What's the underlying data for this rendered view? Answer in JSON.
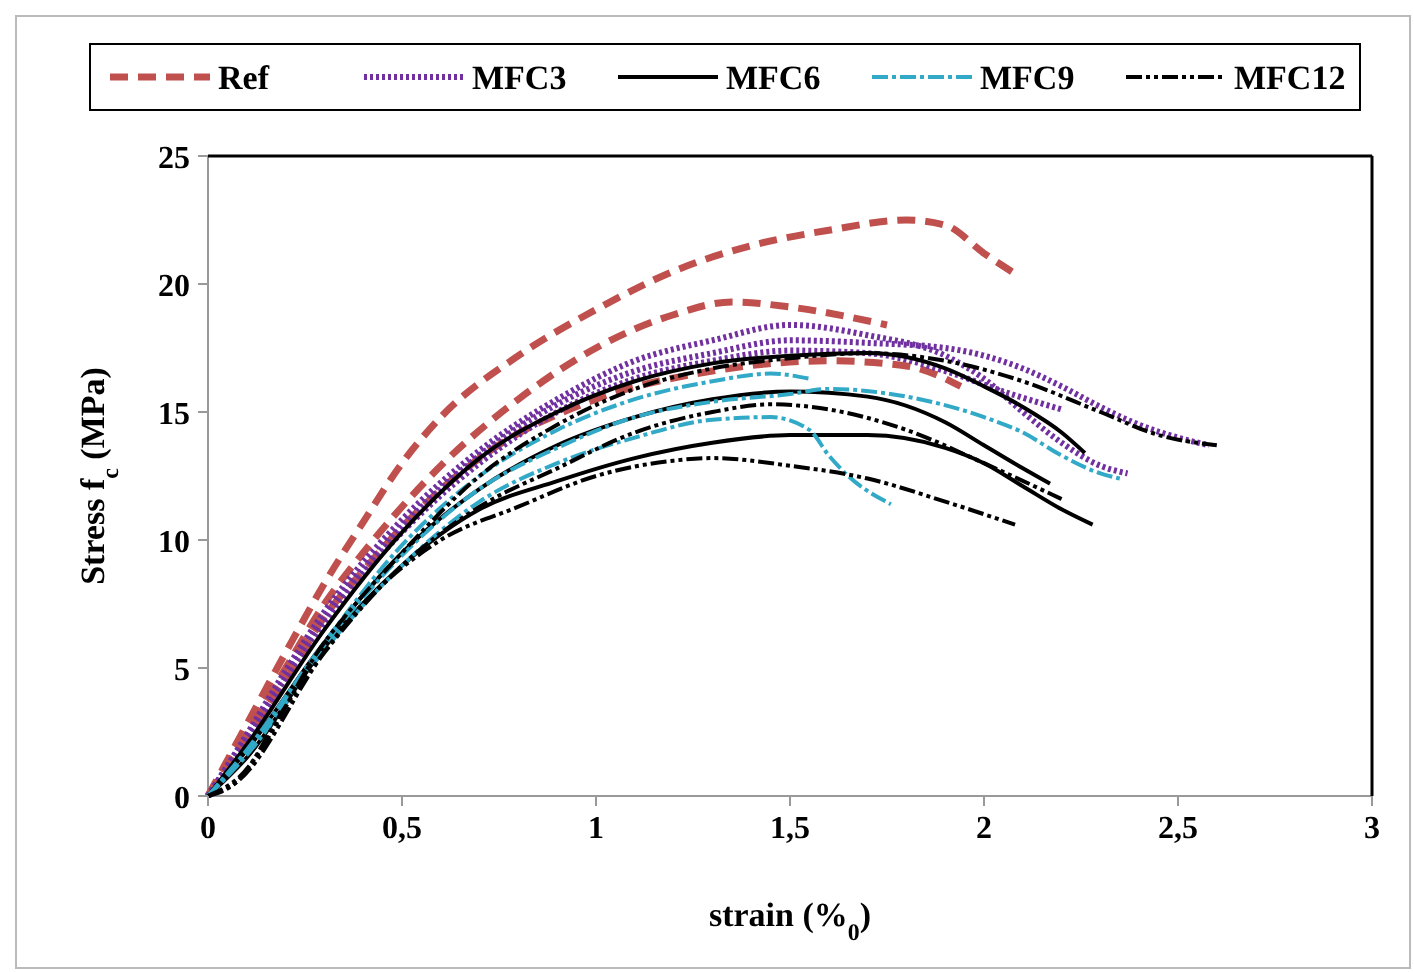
{
  "chart_data": {
    "type": "line",
    "xlabel": "strain (%$_{0}$)",
    "ylabel": "Stress f$_{c}$ (MPa)",
    "xlim": [
      0,
      3
    ],
    "ylim": [
      0,
      25
    ],
    "xticks": [
      0,
      {
        "value": 0.5,
        "label": "0,5"
      },
      1,
      {
        "value": 1.5,
        "label": "1,5"
      },
      2,
      {
        "value": 2.5,
        "label": "2,5"
      },
      3
    ],
    "yticks": [
      0,
      5,
      10,
      15,
      20,
      25
    ],
    "grid": false,
    "legend": "top",
    "marker": "none",
    "series": [
      {
        "name": "Ref",
        "color": "#c0504d",
        "line_style": "dashed",
        "x": [
          0,
          0.1,
          0.2,
          0.3,
          0.4,
          0.5,
          0.6,
          0.8,
          1.0,
          1.2,
          1.4,
          1.6,
          1.8,
          1.9,
          2.0,
          2.08
        ],
        "values": [
          0,
          2.8,
          5.6,
          8.3,
          10.7,
          13,
          14.8,
          17.2,
          19,
          20.5,
          21.5,
          22.1,
          22.5,
          22.3,
          21.2,
          20.4
        ]
      },
      {
        "color": "#c0504d",
        "line_style": "dashed",
        "x": [
          0,
          0.1,
          0.2,
          0.3,
          0.4,
          0.5,
          0.6,
          0.8,
          1.0,
          1.2,
          1.35,
          1.5,
          1.75
        ],
        "values": [
          0,
          2.5,
          5,
          7.5,
          9.5,
          11.3,
          12.9,
          15.5,
          17.5,
          18.8,
          19.3,
          19.1,
          18.4
        ]
      },
      {
        "color": "#c0504d",
        "line_style": "dashed",
        "x": [
          0,
          0.1,
          0.2,
          0.3,
          0.4,
          0.5,
          0.7,
          1.0,
          1.3,
          1.6,
          1.8,
          1.94
        ],
        "values": [
          0,
          2.3,
          4.5,
          7,
          8.8,
          10.5,
          13.2,
          15.5,
          16.6,
          17,
          16.8,
          16.0
        ]
      },
      {
        "name": "MFC3",
        "color": "#7030a0",
        "line_style": "dotted",
        "x": [
          0,
          0.1,
          0.2,
          0.3,
          0.5,
          0.7,
          0.9,
          1.1,
          1.3,
          1.5,
          1.7,
          1.9,
          2.0,
          2.1,
          2.2,
          2.3,
          2.37
        ],
        "values": [
          0,
          2.4,
          4.9,
          7.2,
          10.8,
          13.5,
          15.5,
          17,
          17.8,
          18.4,
          18,
          17.2,
          16.3,
          15,
          13.8,
          12.9,
          12.6
        ]
      },
      {
        "color": "#7030a0",
        "line_style": "dotted",
        "x": [
          0,
          0.1,
          0.3,
          0.5,
          0.7,
          0.9,
          1.1,
          1.3,
          1.5,
          1.7,
          1.9,
          2.0,
          2.1,
          2.2,
          2.3,
          2.4,
          2.5,
          2.58
        ],
        "values": [
          0,
          2.2,
          7,
          10.5,
          13.3,
          15.3,
          16.6,
          17.3,
          17.8,
          17.7,
          17.5,
          17.2,
          16.7,
          16,
          15.2,
          14.5,
          14,
          13.7
        ]
      },
      {
        "color": "#7030a0",
        "line_style": "dotted",
        "x": [
          0,
          0.1,
          0.3,
          0.5,
          0.7,
          0.9,
          1.1,
          1.3,
          1.5,
          1.7,
          1.9,
          2.05,
          2.2
        ],
        "values": [
          0,
          2.3,
          6.8,
          10.3,
          13,
          15,
          16.3,
          17,
          17.4,
          17.3,
          16.6,
          15.8,
          15.1
        ]
      },
      {
        "name": "MFC6",
        "color": "#000000",
        "line_style": "solid",
        "x": [
          0,
          0.1,
          0.3,
          0.5,
          0.7,
          0.9,
          1.1,
          1.3,
          1.5,
          1.7,
          1.9,
          2.0,
          2.1,
          2.2,
          2.28
        ],
        "values": [
          0,
          1.5,
          5.8,
          9,
          11.2,
          12.3,
          13.2,
          13.8,
          14.1,
          14.1,
          13.6,
          13,
          12.1,
          11.2,
          10.6
        ]
      },
      {
        "color": "#000000",
        "line_style": "solid",
        "x": [
          0,
          0.1,
          0.3,
          0.5,
          0.7,
          0.9,
          1.1,
          1.3,
          1.5,
          1.7,
          1.9,
          2.0,
          2.1,
          2.2,
          2.26
        ],
        "values": [
          0,
          2,
          6.5,
          10.3,
          13.2,
          15,
          16.2,
          16.9,
          17.2,
          17.3,
          16.7,
          16,
          15.2,
          14.2,
          13.4
        ]
      },
      {
        "color": "#000000",
        "line_style": "solid",
        "x": [
          0,
          0.1,
          0.3,
          0.5,
          0.7,
          0.9,
          1.1,
          1.3,
          1.5,
          1.7,
          1.9,
          2.0,
          2.1,
          2.17
        ],
        "values": [
          0,
          1.8,
          6,
          9.5,
          12,
          13.7,
          14.8,
          15.5,
          15.8,
          15.6,
          14.6,
          13.7,
          12.8,
          12.2
        ]
      },
      {
        "name": "MFC9",
        "color": "#31a9c7",
        "line_style": "dashdot",
        "x": [
          0,
          0.1,
          0.3,
          0.5,
          0.7,
          0.9,
          1.1,
          1.3,
          1.45,
          1.55
        ],
        "values": [
          0,
          1.8,
          6,
          9.8,
          12.5,
          14.3,
          15.5,
          16.2,
          16.5,
          16.3
        ]
      },
      {
        "color": "#31a9c7",
        "line_style": "dashdot",
        "x": [
          0,
          0.1,
          0.3,
          0.5,
          0.7,
          0.9,
          1.1,
          1.3,
          1.45,
          1.55,
          1.6,
          1.65,
          1.76
        ],
        "values": [
          0,
          1.6,
          5.7,
          9,
          11.5,
          13,
          14,
          14.7,
          14.8,
          14.3,
          13.3,
          12.5,
          11.4
        ]
      },
      {
        "color": "#31a9c7",
        "line_style": "dashdot",
        "x": [
          0,
          0.1,
          0.3,
          0.5,
          0.7,
          0.9,
          1.1,
          1.3,
          1.5,
          1.6,
          1.8,
          2.0,
          2.1,
          2.2,
          2.3,
          2.35
        ],
        "values": [
          0,
          1.7,
          5.9,
          9.4,
          12,
          13.6,
          14.8,
          15.4,
          15.7,
          15.9,
          15.6,
          14.8,
          14.2,
          13.3,
          12.6,
          12.4
        ]
      },
      {
        "name": "MFC12",
        "color": "#000000",
        "line_style": "dashdotdot",
        "x": [
          0,
          0.07,
          0.2,
          0.4,
          0.6,
          0.8,
          1.0,
          1.2,
          1.3,
          1.5,
          1.7,
          1.9,
          2.08
        ],
        "values": [
          0,
          0.5,
          3.5,
          7.5,
          10,
          11.3,
          12.5,
          13.1,
          13.2,
          12.9,
          12.4,
          11.5,
          10.6
        ]
      },
      {
        "color": "#000000",
        "line_style": "dashdotdot",
        "x": [
          0,
          0.07,
          0.3,
          0.5,
          0.7,
          0.9,
          1.1,
          1.3,
          1.5,
          1.7,
          1.9,
          2.1,
          2.3,
          2.45,
          2.6
        ],
        "values": [
          0,
          0.6,
          6,
          9.5,
          12.5,
          14.5,
          15.9,
          16.7,
          17.1,
          17.3,
          17,
          16.2,
          15,
          14.1,
          13.7
        ]
      },
      {
        "color": "#000000",
        "line_style": "dashdotdot",
        "x": [
          0,
          0.07,
          0.3,
          0.5,
          0.7,
          0.9,
          1.1,
          1.3,
          1.45,
          1.6,
          1.8,
          2.0,
          2.2
        ],
        "values": [
          0,
          0.5,
          5.6,
          9,
          11.3,
          12.8,
          14.2,
          15,
          15.3,
          15.1,
          14.3,
          13,
          11.6
        ]
      }
    ]
  }
}
